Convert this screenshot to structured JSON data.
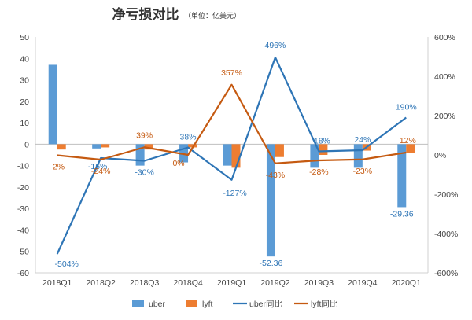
{
  "chart_data": {
    "type": "bar",
    "title": "净亏损对比",
    "subtitle": "（单位：亿美元）",
    "categories": [
      "2018Q1",
      "2018Q2",
      "2018Q3",
      "2018Q4",
      "2019Q1",
      "2019Q2",
      "2019Q3",
      "2019Q4",
      "2020Q1"
    ],
    "y_left": {
      "min": -60,
      "max": 50,
      "step": 10
    },
    "y_right": {
      "min": -600,
      "max": 600,
      "step": 200,
      "unit": "%"
    },
    "series": [
      {
        "name": "uber",
        "kind": "bar",
        "axis": "left",
        "color": "#5B9BD5",
        "values": [
          37.0,
          -2.0,
          -10.0,
          -8.5,
          -10.0,
          -52.36,
          -11.0,
          -11.0,
          -29.36
        ]
      },
      {
        "name": "lyft",
        "kind": "bar",
        "axis": "left",
        "color": "#ED7D31",
        "values": [
          -2.5,
          -1.5,
          -2.5,
          -1.5,
          -11.0,
          -6.0,
          -5.0,
          -3.0,
          -4.0
        ]
      },
      {
        "name": "uber同比",
        "kind": "line",
        "axis": "right",
        "color": "#2E75B6",
        "values": [
          -504,
          -16,
          -30,
          38,
          -127,
          496,
          18,
          24,
          190
        ]
      },
      {
        "name": "lyft同比",
        "kind": "line",
        "axis": "right",
        "color": "#C55A11",
        "values": [
          -2,
          -24,
          39,
          0,
          357,
          -43,
          -28,
          -23,
          12
        ]
      }
    ],
    "data_labels": [
      {
        "series": "uber",
        "index": 5,
        "text": "-52.36"
      },
      {
        "series": "uber",
        "index": 8,
        "text": "-29.36"
      },
      {
        "series": "uber同比",
        "index": 0,
        "text": "-504%"
      },
      {
        "series": "uber同比",
        "index": 1,
        "text": "-16%"
      },
      {
        "series": "uber同比",
        "index": 2,
        "text": "-30%"
      },
      {
        "series": "uber同比",
        "index": 3,
        "text": "38%"
      },
      {
        "series": "uber同比",
        "index": 4,
        "text": "-127%"
      },
      {
        "series": "uber同比",
        "index": 5,
        "text": "496%"
      },
      {
        "series": "uber同比",
        "index": 6,
        "text": "18%"
      },
      {
        "series": "uber同比",
        "index": 7,
        "text": "24%"
      },
      {
        "series": "uber同比",
        "index": 8,
        "text": "190%"
      },
      {
        "series": "lyft同比",
        "index": 0,
        "text": "-2%"
      },
      {
        "series": "lyft同比",
        "index": 1,
        "text": "-24%"
      },
      {
        "series": "lyft同比",
        "index": 2,
        "text": "39%"
      },
      {
        "series": "lyft同比",
        "index": 3,
        "text": "0%"
      },
      {
        "series": "lyft同比",
        "index": 4,
        "text": "357%"
      },
      {
        "series": "lyft同比",
        "index": 5,
        "text": "-43%"
      },
      {
        "series": "lyft同比",
        "index": 6,
        "text": "-28%"
      },
      {
        "series": "lyft同比",
        "index": 7,
        "text": "-23%"
      },
      {
        "series": "lyft同比",
        "index": 8,
        "text": "12%"
      }
    ],
    "legend": {
      "position": "bottom"
    },
    "grid": false
  }
}
